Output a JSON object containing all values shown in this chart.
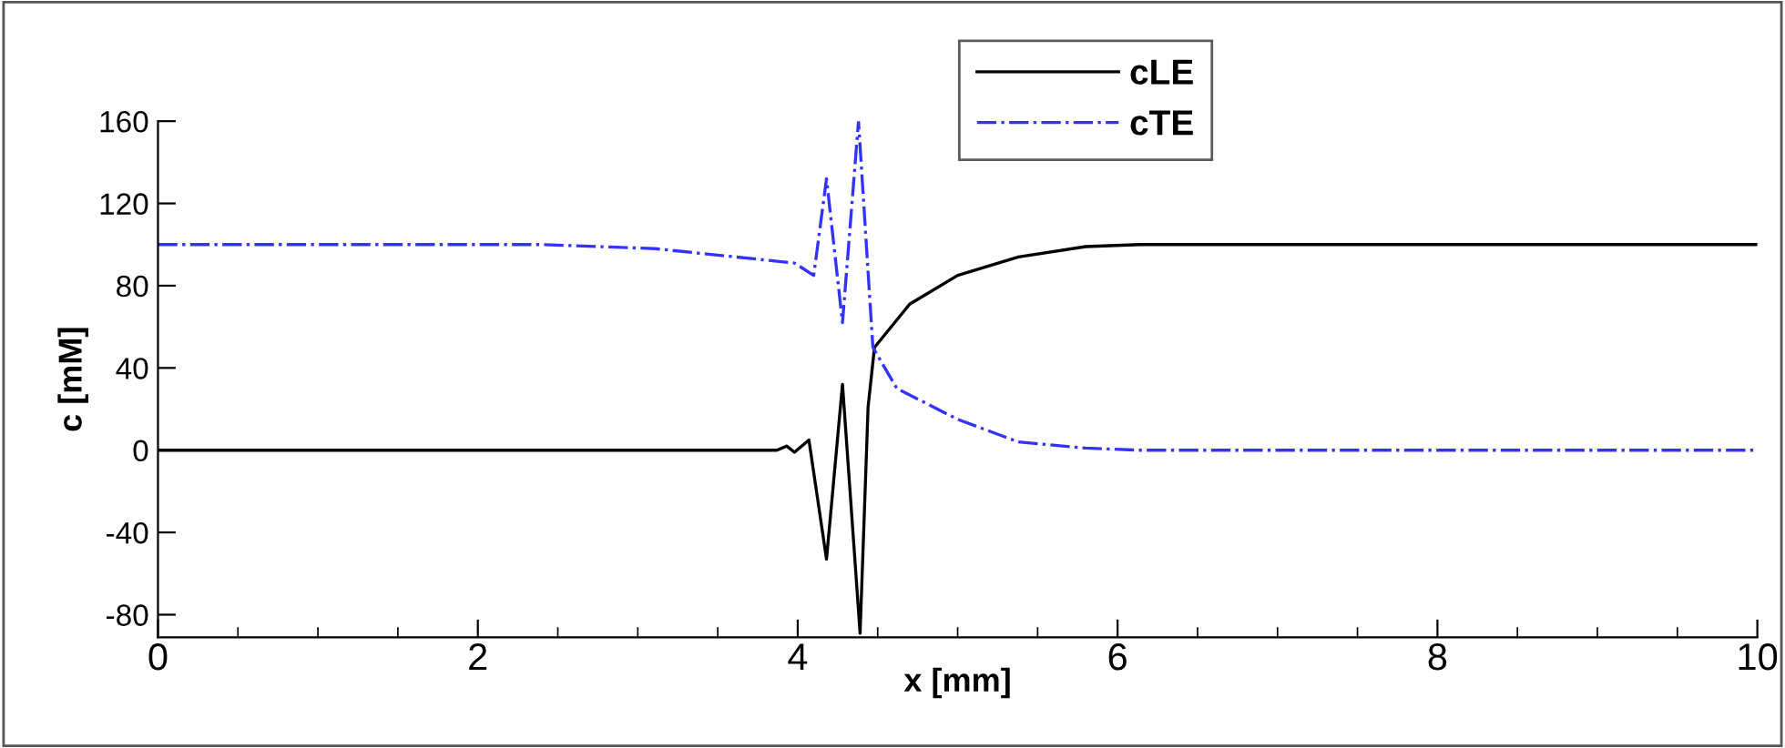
{
  "chart_data": {
    "type": "line",
    "xlabel": "x [mm]",
    "ylabel": "c [mM]",
    "xlim": [
      0,
      10
    ],
    "ylim": [
      -91,
      160
    ],
    "xticks": [
      0,
      2,
      4,
      6,
      8,
      10
    ],
    "yticks": [
      -80,
      -40,
      0,
      40,
      80,
      120,
      160
    ],
    "grid": false,
    "legend": "top",
    "marker": "none",
    "series": [
      {
        "name": "cLE",
        "color": "#000000",
        "line_style": "solid",
        "x": [
          0,
          3.87,
          3.93,
          3.98,
          4.07,
          4.18,
          4.28,
          4.39,
          4.44,
          4.48,
          4.7,
          5.0,
          5.38,
          5.8,
          6.14,
          10
        ],
        "values": [
          0,
          0,
          2,
          -1,
          5,
          -53,
          32,
          -89,
          21,
          50,
          71,
          85,
          94,
          99,
          100,
          100
        ]
      },
      {
        "name": "cTE",
        "color": "#3333ff",
        "line_style": "dashdot",
        "x": [
          0,
          2.4,
          3.11,
          3.98,
          4.1,
          4.18,
          4.28,
          4.38,
          4.47,
          4.62,
          5.0,
          5.38,
          5.8,
          6.14,
          10
        ],
        "values": [
          100,
          100,
          98,
          91,
          85,
          132,
          62,
          160,
          50,
          30,
          15,
          4,
          1,
          0,
          0
        ]
      }
    ]
  }
}
